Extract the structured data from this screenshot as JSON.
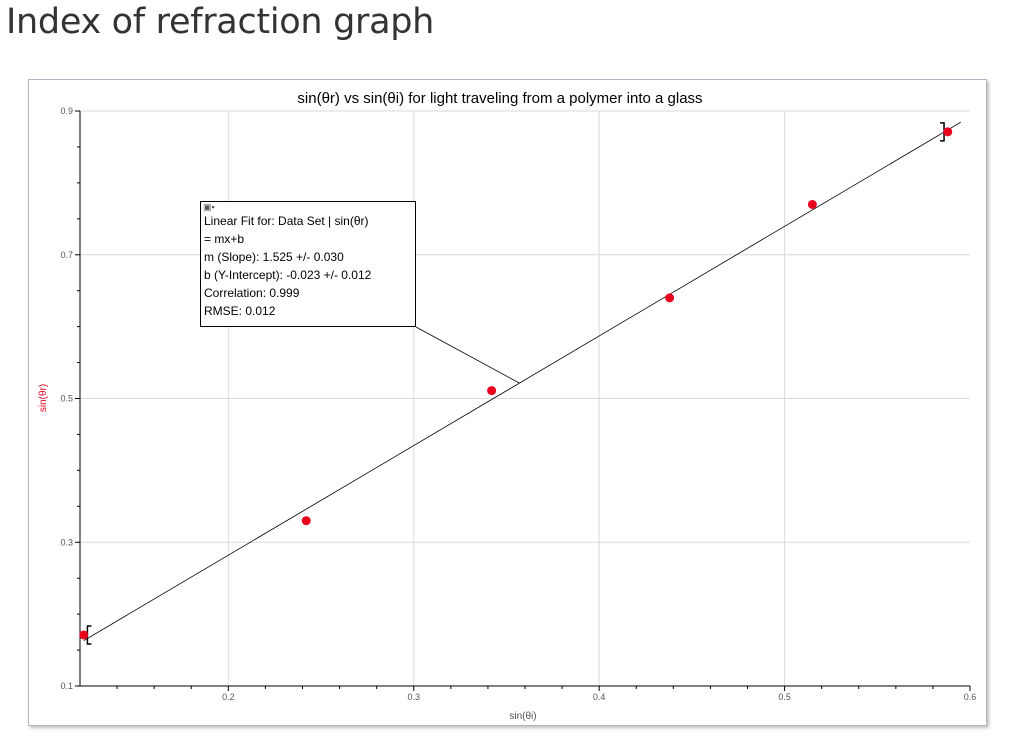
{
  "page": {
    "heading": "Index of refraction graph"
  },
  "chart_data": {
    "type": "scatter",
    "title": "sin(θr) vs sin(θi) for light traveling from a polymer into a glass",
    "xlabel": "sin(θi)",
    "ylabel": "sin(θr)",
    "xlim": [
      0.12,
      0.6
    ],
    "ylim": [
      0.1,
      0.9
    ],
    "x_ticks": [
      "0.2",
      "0.3",
      "0.4",
      "0.5",
      "0.6"
    ],
    "y_ticks": [
      "0.1",
      "0.3",
      "0.5",
      "0.7",
      "0.9"
    ],
    "x_tick_values": [
      0.2,
      0.3,
      0.4,
      0.5,
      0.6
    ],
    "y_tick_values": [
      0.1,
      0.3,
      0.5,
      0.7,
      0.9
    ],
    "grid": true,
    "series": [
      {
        "x": [
          0.122,
          0.242,
          0.342,
          0.438,
          0.515,
          0.588
        ],
        "y": [
          0.171,
          0.33,
          0.511,
          0.64,
          0.77,
          0.871
        ],
        "color": "#e8001c"
      }
    ],
    "fit": {
      "slope": 1.525,
      "intercept": -0.023,
      "x_range": [
        0.122,
        0.595
      ]
    },
    "annotation": {
      "lines": [
        "Linear Fit for: Data Set | sin(θr)",
        " = mx+b",
        "m (Slope): 1.525 +/- 0.030",
        "b (Y-Intercept): -0.023 +/- 0.012",
        "Correlation: 0.999",
        "RMSE: 0.012"
      ]
    },
    "axis_label_color": "#e8001c"
  }
}
